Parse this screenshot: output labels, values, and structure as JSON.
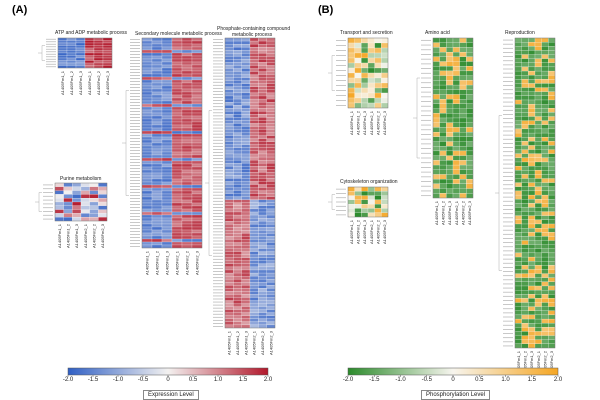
{
  "panel_a": {
    "label": "(A)",
    "heatmaps": [
      {
        "title": "ATP and ADP metabolic process",
        "key": "atp",
        "rows": 12,
        "cols": 6,
        "seed": 3
      },
      {
        "title": "Purine metabolism",
        "key": "purine",
        "rows": 10,
        "cols": 6,
        "seed": 7
      },
      {
        "title": "Secondary molecule metabolic process",
        "key": "secondary",
        "rows": 70,
        "cols": 6,
        "seed": 11
      },
      {
        "title": "Phosphate-containing compound",
        "title2": "metabolic process",
        "key": "phosphate",
        "rows": 95,
        "cols": 6,
        "seed": 19
      }
    ],
    "col_labels": [
      "A1405Fm1_1",
      "A1405Fm1_2",
      "A1405Fm1_3",
      "A1405Fm2_1",
      "A1405Fm2_2",
      "A1405Fm2_3"
    ],
    "legend": {
      "title": "Expression Level",
      "ticks": [
        "-2.0",
        "-1.5",
        "-1.0",
        "-0.5",
        "0",
        "0.5",
        "1.0",
        "1.5",
        "2.0"
      ],
      "low_color": "#2f5fc4",
      "mid_color": "#f3f1f0",
      "high_color": "#b2182b"
    }
  },
  "panel_b": {
    "label": "(B)",
    "heatmaps": [
      {
        "title": "Transport and secretion",
        "key": "transport",
        "rows": 14,
        "cols": 6,
        "seed": 23
      },
      {
        "title": "Cytoskeleton organization",
        "key": "cytoskeleton",
        "rows": 7,
        "cols": 6,
        "seed": 29
      },
      {
        "title": "Amino acid",
        "key": "amino",
        "rows": 34,
        "cols": 6,
        "seed": 31
      },
      {
        "title": "Reproduction",
        "key": "reproduction",
        "rows": 75,
        "cols": 6,
        "seed": 37
      }
    ],
    "col_labels": [
      "A1405Fm1_1",
      "A1405Fm1_2",
      "A1405Fm1_3",
      "A1405Fm2_1",
      "A1405Fm2_2",
      "A1405Fm2_3"
    ],
    "legend": {
      "title": "Phosphorylation Level",
      "ticks": [
        "-2.0",
        "-1.5",
        "-1.0",
        "-0.5",
        "0",
        "0.5",
        "1.0",
        "1.5",
        "2.0"
      ],
      "low_color": "#2b8a2b",
      "mid_color": "#f7f5ee",
      "high_color": "#f5a623"
    }
  }
}
